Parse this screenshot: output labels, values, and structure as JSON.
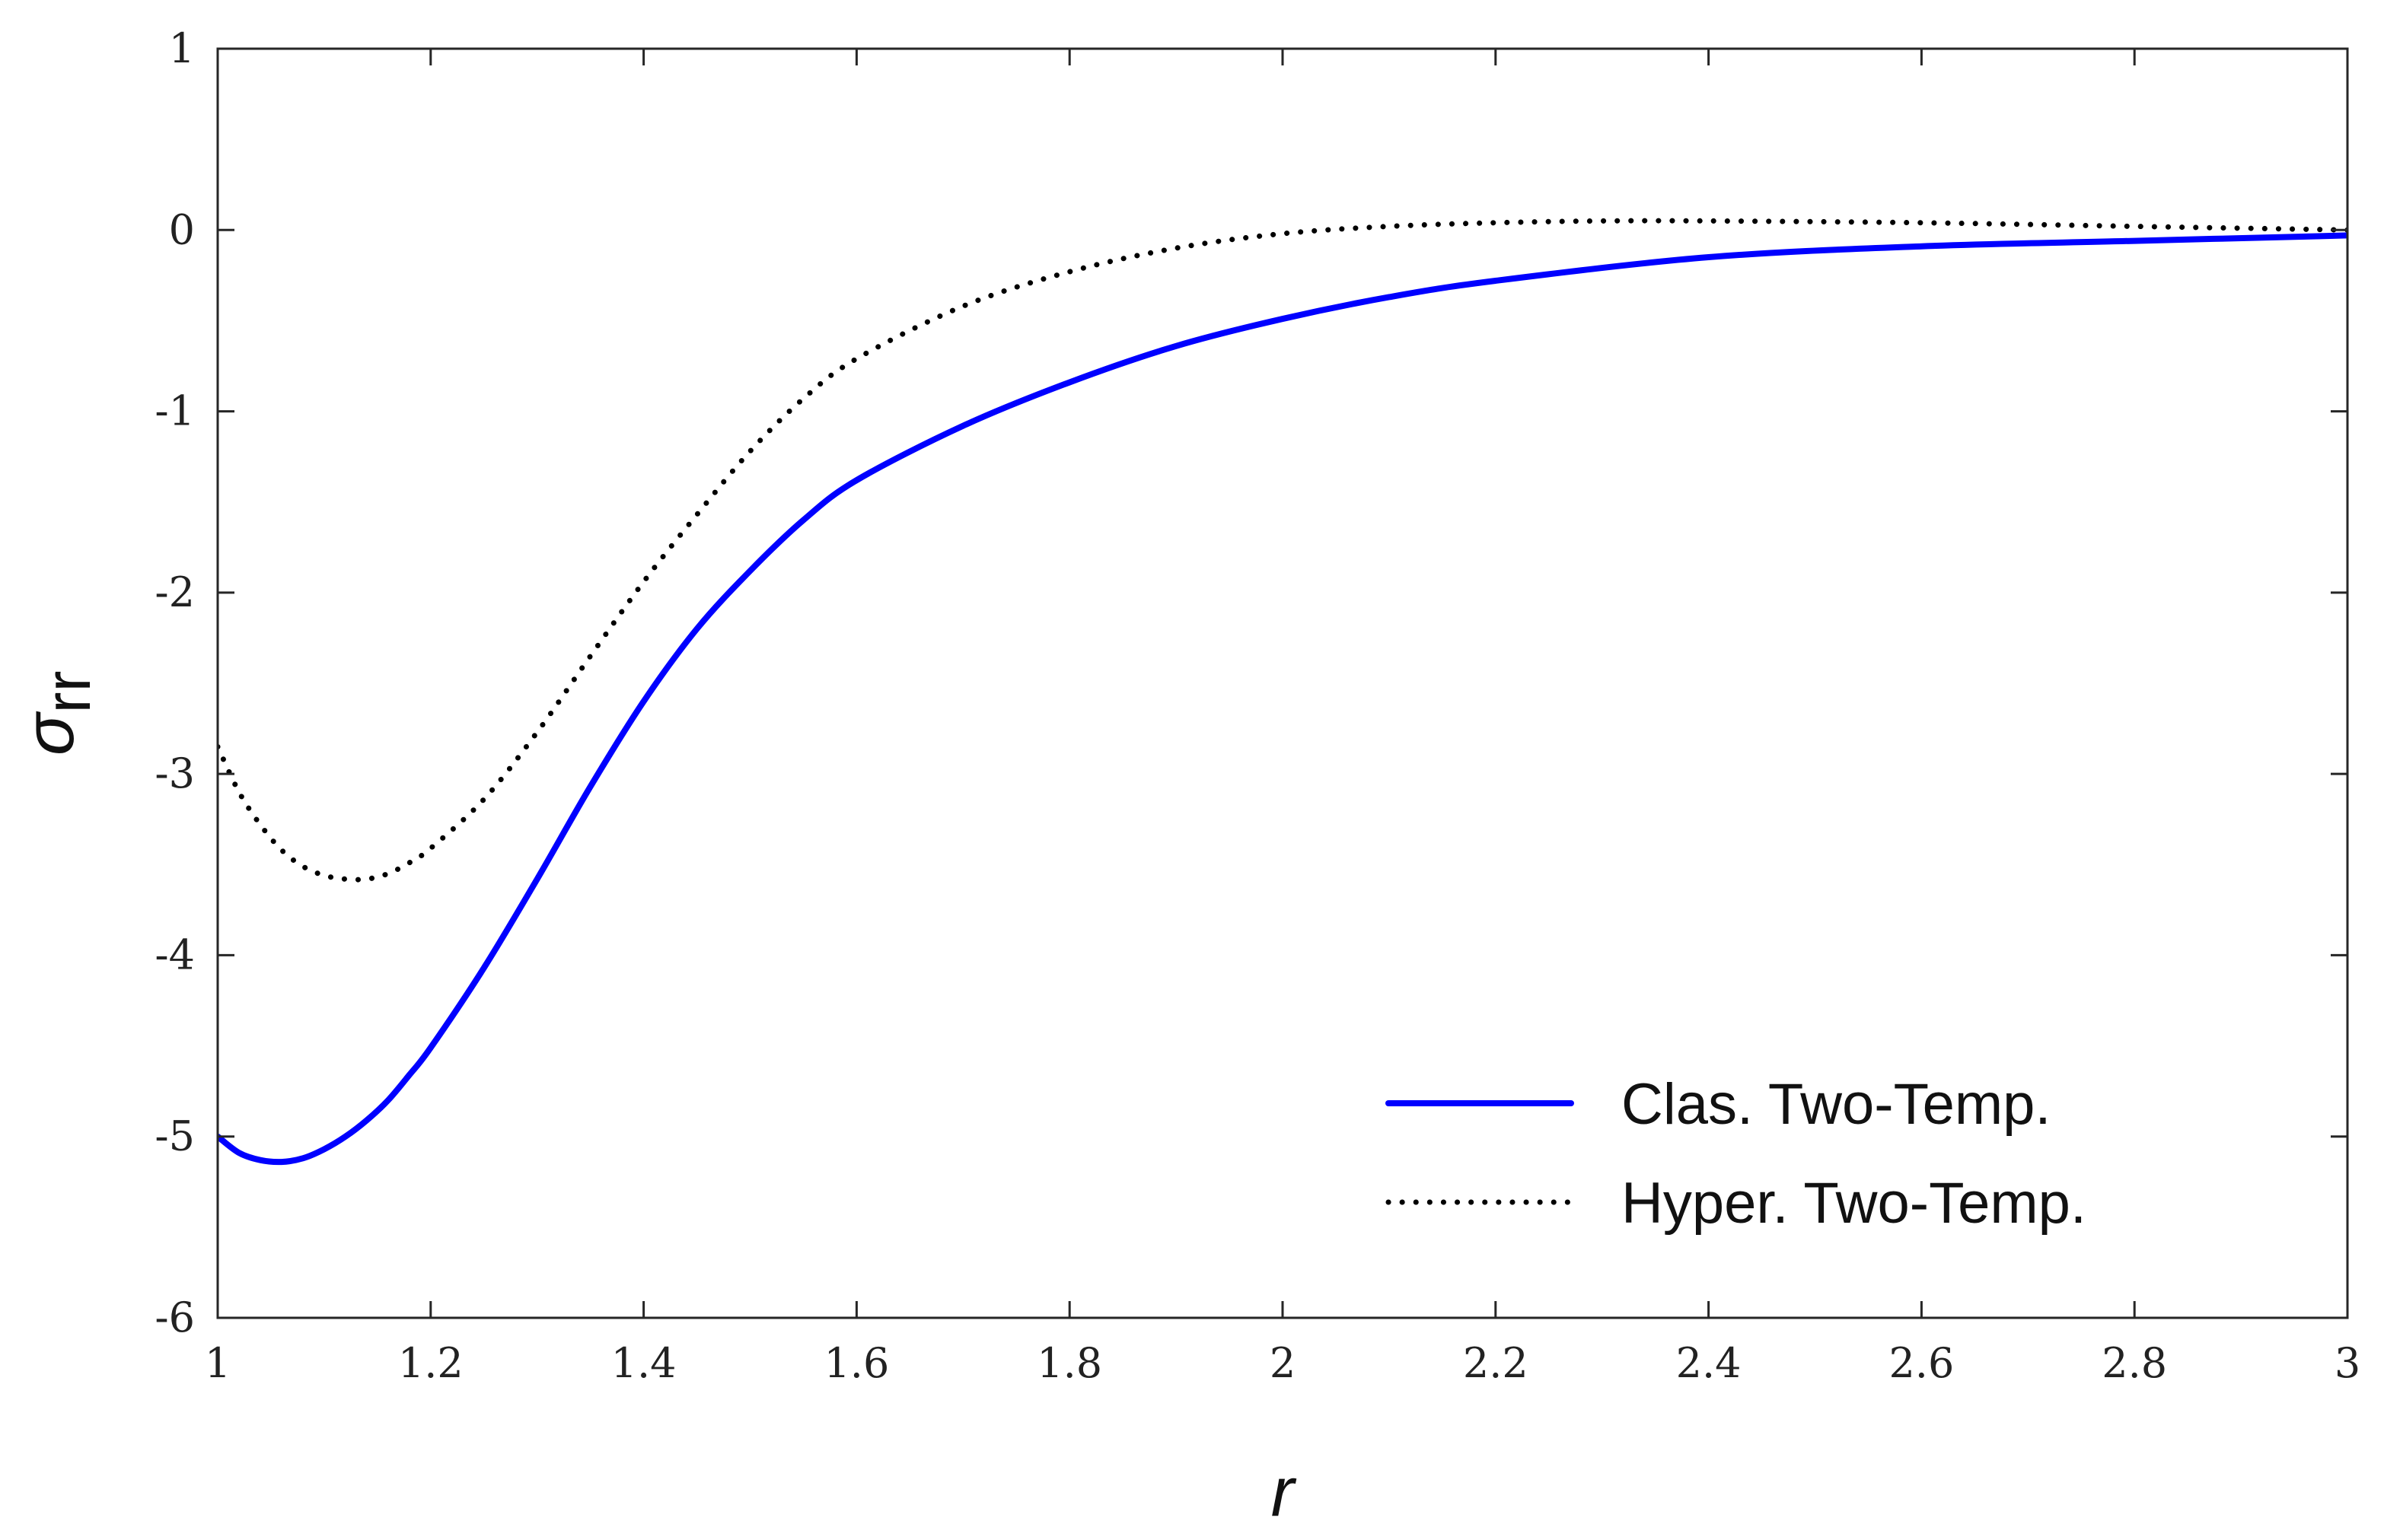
{
  "chart_data": {
    "type": "line",
    "xlabel": "r",
    "ylabel": "σ",
    "ylabel_subscript": "rr",
    "xlim": [
      1,
      3
    ],
    "ylim": [
      -6,
      1
    ],
    "x_ticks": [
      1,
      1.2,
      1.4,
      1.6,
      1.8,
      2,
      2.2,
      2.4,
      2.6,
      2.8,
      3
    ],
    "x_tick_labels": [
      "1",
      "1.2",
      "1.4",
      "1.6",
      "1.8",
      "2",
      "2.2",
      "2.4",
      "2.6",
      "2.8",
      "3"
    ],
    "y_ticks": [
      1,
      0,
      -1,
      -2,
      -3,
      -4,
      -5,
      -6
    ],
    "y_tick_labels": [
      "1",
      "0",
      "-1",
      "-2",
      "-3",
      "-4",
      "-5",
      "-6"
    ],
    "grid": false,
    "legend_position": "bottom-right",
    "series": [
      {
        "name": "Clas. Two-Temp.",
        "color": "#0000ff",
        "style": "solid",
        "x": [
          1.0,
          1.02,
          1.04,
          1.06,
          1.08,
          1.1,
          1.12,
          1.14,
          1.16,
          1.18,
          1.2,
          1.25,
          1.3,
          1.35,
          1.4,
          1.45,
          1.5,
          1.55,
          1.6,
          1.7,
          1.8,
          1.9,
          2.0,
          2.1,
          2.2,
          2.4,
          2.6,
          2.8,
          3.0
        ],
        "y": [
          -5.0,
          -5.09,
          -5.13,
          -5.14,
          -5.12,
          -5.07,
          -5.0,
          -4.91,
          -4.8,
          -4.66,
          -4.51,
          -4.07,
          -3.58,
          -3.07,
          -2.6,
          -2.2,
          -1.88,
          -1.6,
          -1.38,
          -1.08,
          -0.84,
          -0.64,
          -0.49,
          -0.37,
          -0.28,
          -0.15,
          -0.09,
          -0.06,
          -0.03
        ]
      },
      {
        "name": "Hyper. Two-Temp.",
        "color": "#000000",
        "style": "dotted",
        "x": [
          1.0,
          1.02,
          1.04,
          1.06,
          1.08,
          1.1,
          1.12,
          1.14,
          1.16,
          1.18,
          1.2,
          1.25,
          1.3,
          1.35,
          1.4,
          1.45,
          1.5,
          1.55,
          1.6,
          1.7,
          1.8,
          1.9,
          2.0,
          2.1,
          2.2,
          2.3,
          2.4,
          2.6,
          2.8,
          3.0
        ],
        "y": [
          -2.85,
          -3.1,
          -3.28,
          -3.42,
          -3.51,
          -3.56,
          -3.58,
          -3.58,
          -3.55,
          -3.49,
          -3.41,
          -3.14,
          -2.77,
          -2.35,
          -1.94,
          -1.57,
          -1.22,
          -0.93,
          -0.71,
          -0.42,
          -0.23,
          -0.1,
          -0.02,
          0.02,
          0.04,
          0.05,
          0.05,
          0.04,
          0.02,
          0.0
        ]
      }
    ]
  }
}
